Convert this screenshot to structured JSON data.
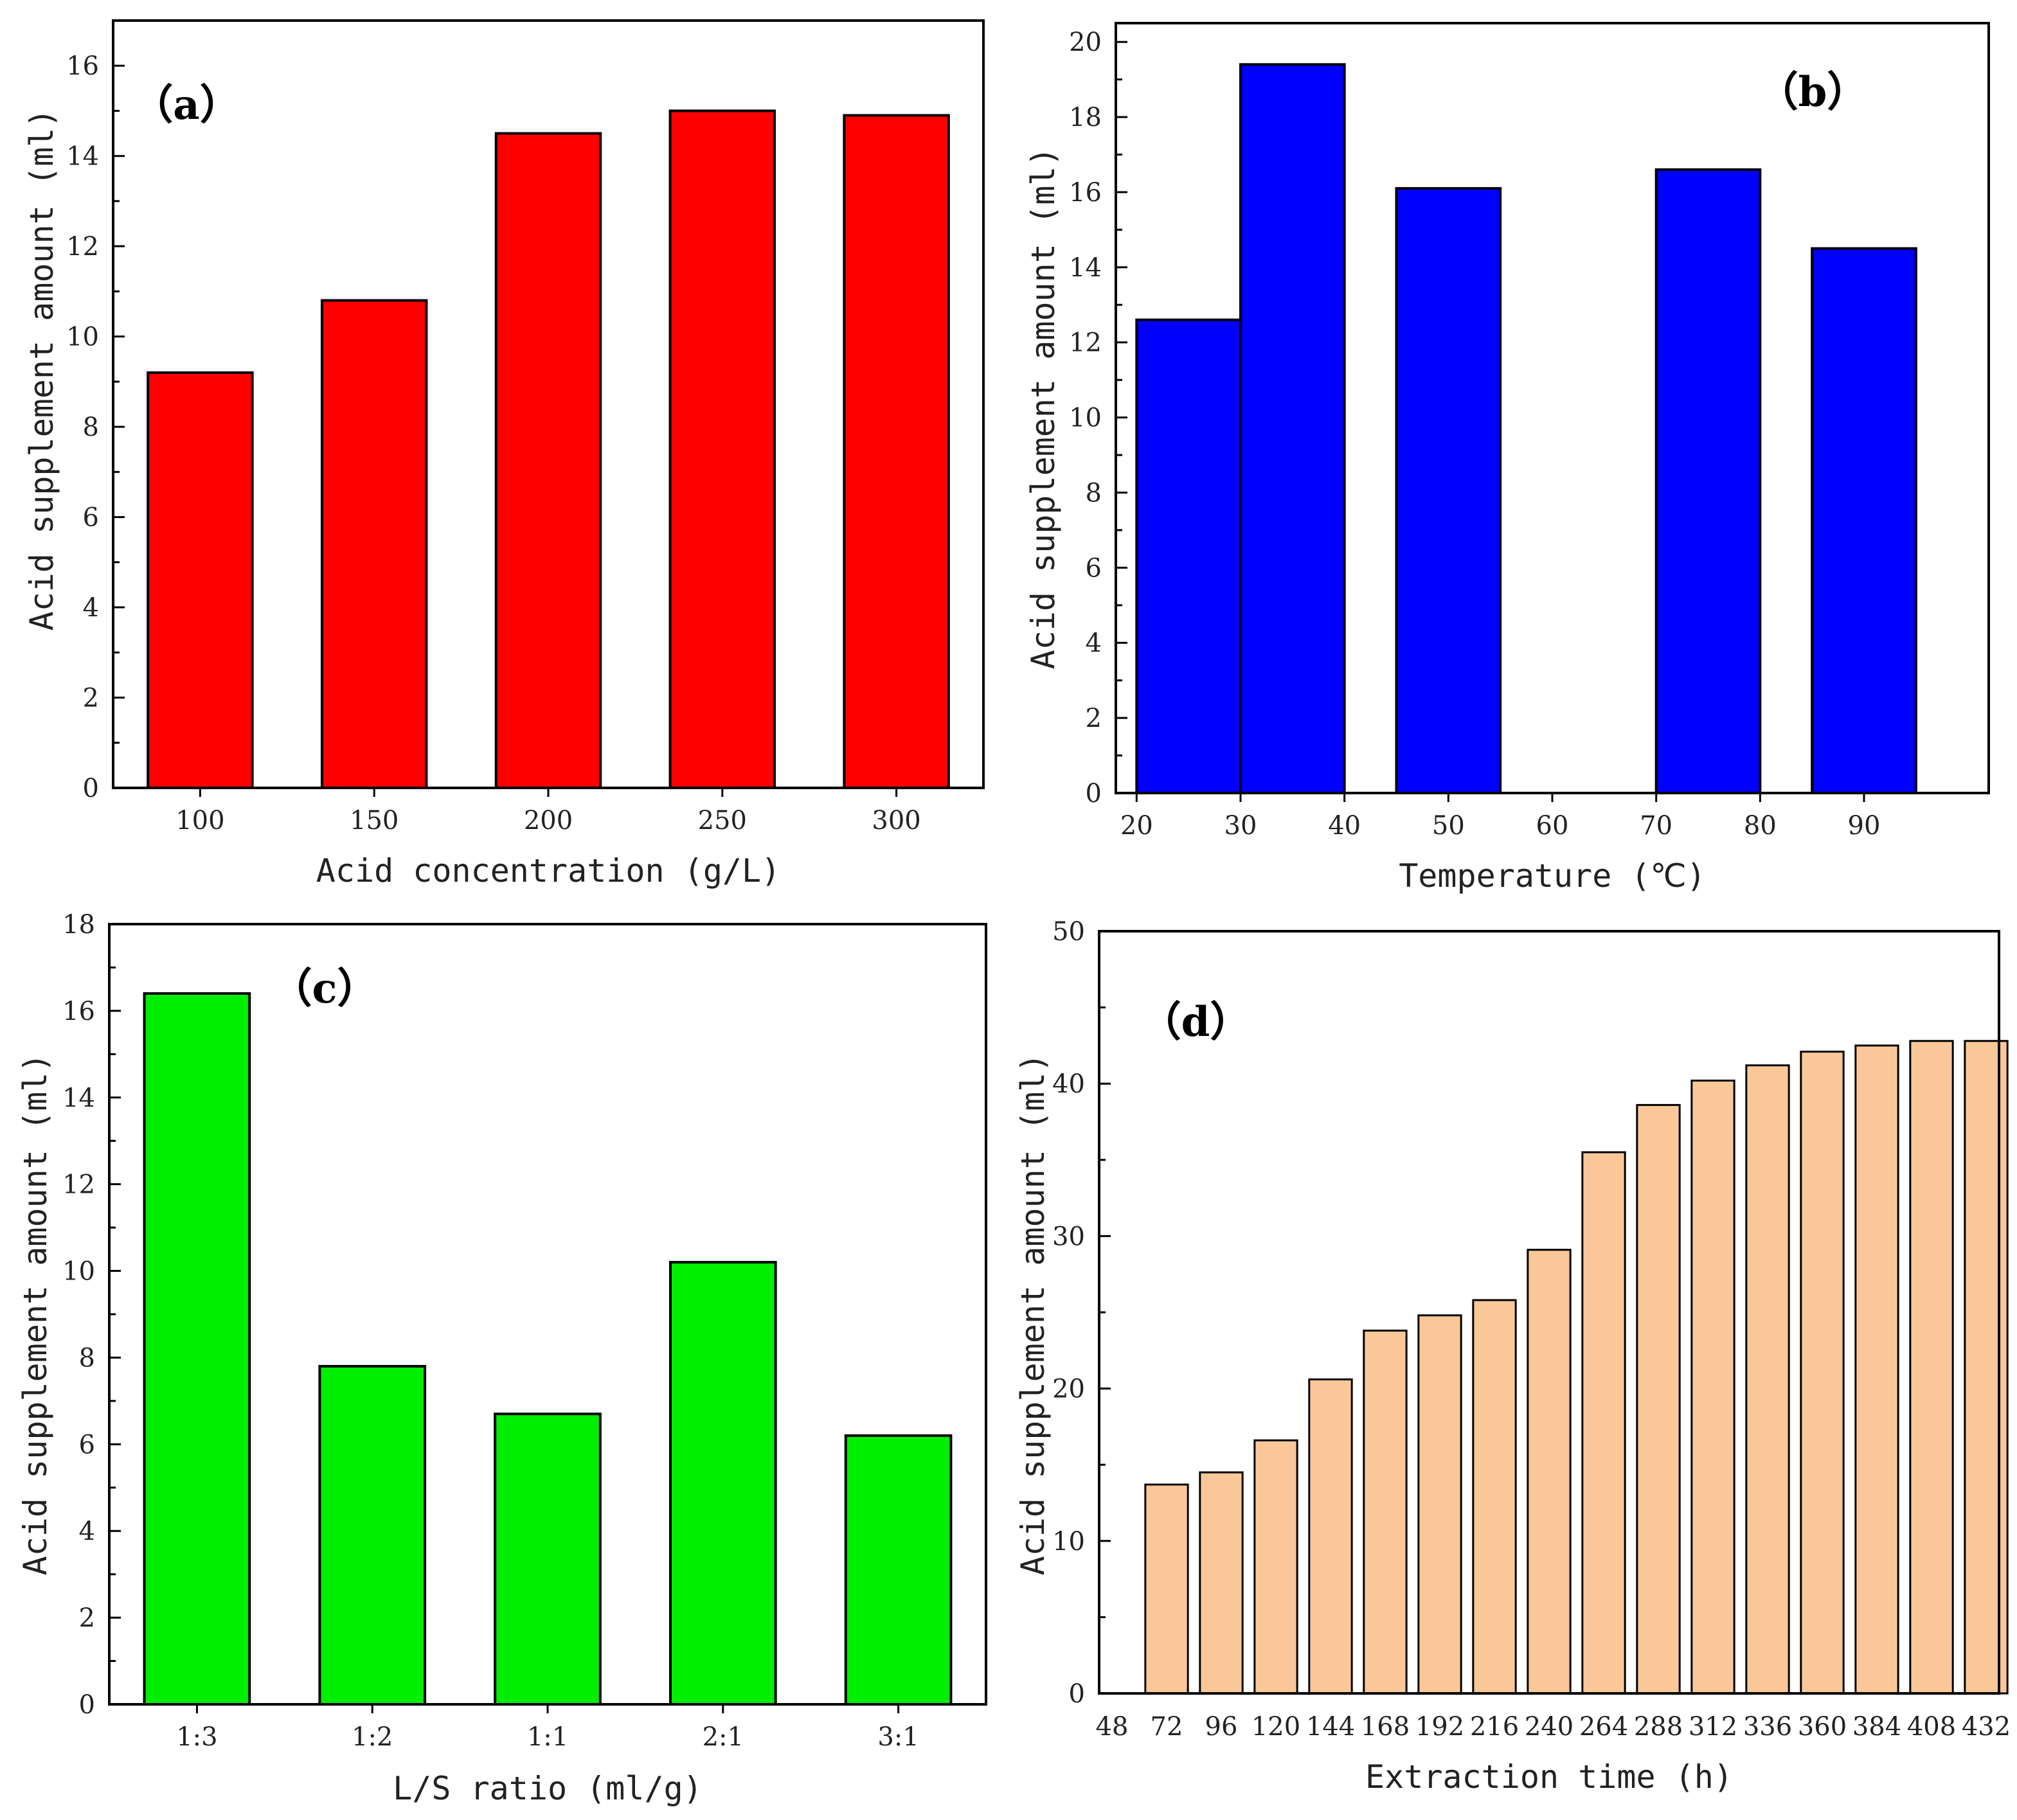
{
  "chart_data": [
    {
      "id": "a",
      "type": "bar",
      "panel_label": "（a）",
      "xlabel": "Acid concentration (g/L)",
      "ylabel": "Acid supplement amount (ml)",
      "ylim": [
        0,
        17
      ],
      "yticks": [
        "0",
        "2",
        "4",
        "6",
        "8",
        "10",
        "12",
        "14",
        "16"
      ],
      "categories": [
        "100",
        "150",
        "200",
        "250",
        "300"
      ],
      "values": [
        9.2,
        10.8,
        14.5,
        15.0,
        14.9
      ],
      "color": "#ff0000"
    },
    {
      "id": "b",
      "type": "bar",
      "panel_label": "（b）",
      "xlabel": "Temperature (℃)",
      "ylabel": "Acid supplement amount (ml)",
      "ylim": [
        0,
        20.5
      ],
      "yticks": [
        "0",
        "2",
        "4",
        "6",
        "8",
        "10",
        "12",
        "14",
        "16",
        "18",
        "20"
      ],
      "xticks": [
        "20",
        "30",
        "40",
        "50",
        "60",
        "70",
        "80",
        "90"
      ],
      "bars": [
        {
          "label": "20-30",
          "x_start": 20,
          "x_end": 30,
          "value": 12.6
        },
        {
          "label": "30-40",
          "x_start": 30,
          "x_end": 40,
          "value": 19.4
        },
        {
          "label": "45-55",
          "x_start": 45,
          "x_end": 55,
          "value": 16.1
        },
        {
          "label": "70-80",
          "x_start": 70,
          "x_end": 80,
          "value": 16.6
        },
        {
          "label": "85-95",
          "x_start": 85,
          "x_end": 95,
          "value": 14.5
        }
      ],
      "xlim": [
        18,
        102
      ],
      "color": "#0000ff"
    },
    {
      "id": "c",
      "type": "bar",
      "panel_label": "（c）",
      "xlabel": "L/S ratio (ml/g)",
      "ylabel": "Acid supplement amount (ml)",
      "ylim": [
        0,
        18
      ],
      "yticks": [
        "0",
        "2",
        "4",
        "6",
        "8",
        "10",
        "12",
        "14",
        "16",
        "18"
      ],
      "categories": [
        "1:3",
        "1:2",
        "1:1",
        "2:1",
        "3:1"
      ],
      "values": [
        16.4,
        7.8,
        6.7,
        10.2,
        6.2
      ],
      "color": "#00ee00"
    },
    {
      "id": "d",
      "type": "bar",
      "panel_label": "（d）",
      "xlabel": "Extraction time (h)",
      "ylabel": "Acid supplement amount (ml)",
      "ylim": [
        0,
        50
      ],
      "yticks": [
        "0",
        "10",
        "20",
        "30",
        "40",
        "50"
      ],
      "xticks": [
        "48",
        "72",
        "96",
        "120",
        "144",
        "168",
        "192",
        "216",
        "240",
        "264",
        "288",
        "312",
        "336",
        "360",
        "384",
        "408",
        "432"
      ],
      "x": [
        72,
        96,
        120,
        144,
        168,
        192,
        216,
        240,
        264,
        288,
        312,
        336,
        360,
        384,
        408,
        432
      ],
      "values": [
        13.7,
        14.5,
        16.6,
        20.6,
        23.8,
        24.8,
        25.8,
        29.1,
        35.5,
        38.6,
        40.2,
        41.2,
        42.1,
        42.5,
        42.8,
        42.8
      ],
      "color": "#fac898"
    }
  ]
}
